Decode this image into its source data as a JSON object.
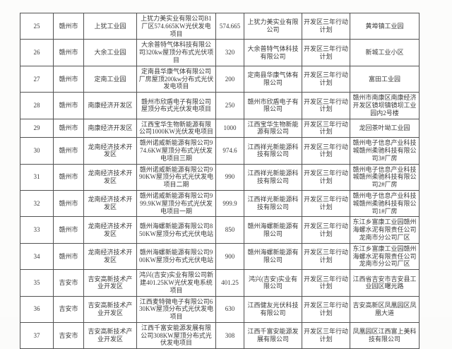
{
  "table": {
    "rows": [
      {
        "no": "25",
        "city": "赣州市",
        "zone": "上犹工业园",
        "project": "上犹力美实业有限公司B1厂区574.665KW光伏发电项目",
        "capacity": "574.665",
        "company": "上犹力美实业有限公司",
        "plan": "开发区三年行动计划",
        "location": "黄埠镇工业园"
      },
      {
        "no": "26",
        "city": "赣州市",
        "zone": "大余工业园",
        "project": "大余普特气体科技有限公司320kw屋顶分布式光伏项目",
        "capacity": "320",
        "company": "大余普特气体科技有限公司",
        "plan": "开发区三年行动计划",
        "location": "新城工业小区"
      },
      {
        "no": "27",
        "city": "赣州市",
        "zone": "定南工业园",
        "project": "定南县华康气体有限公司厂房屋顶200kw分布式光伏发电项目",
        "capacity": "200",
        "company": "定南县华康气体有限公司",
        "plan": "开发区三年行动计划",
        "location": "富田工业园"
      },
      {
        "no": "28",
        "city": "赣州市",
        "zone": "南康经济开发区",
        "project": "赣州市欣盾电子有限公司屋顶分布式光伏发电项目",
        "capacity": "250",
        "company": "赣州市欣盾电子有限公司",
        "plan": "开发区三年行动计划",
        "location": "赣州市南康区南康经济开发区镜坝镇镜坝工业园内2号楼"
      },
      {
        "no": "29",
        "city": "赣州市",
        "zone": "南康经济开发区",
        "project": "江西宝华生物新能源有限公司1000KW光伏发电项目",
        "capacity": "1000",
        "company": "江西宝华生物新能源有限公司",
        "plan": "开发区三年行动计划",
        "location": "龙回茶叶坳工业园"
      },
      {
        "no": "30",
        "city": "赣州市",
        "zone": "龙南经济技术开发区",
        "project": "赣州诺威新能源有限公司974.6KW屋顶分布式光伏发电项目三期",
        "capacity": "974.6",
        "company": "江西祥光新能源科技有限公司",
        "plan": "开发区三年行动计划",
        "location": "赣州电子信息产业科技城赣州柔驰科技有限公司3#厂房"
      },
      {
        "no": "31",
        "city": "赣州市",
        "zone": "龙南经济技术开发区",
        "project": "赣州诺威新能源有限公司990KW屋顶分布式光伏发电项目二期",
        "capacity": "990",
        "company": "江西祥光新能源科技有限公司",
        "plan": "开发区三年行动计划",
        "location": "赣州电子信息产业科技城赣州柔驰科技有限公司2#厂房"
      },
      {
        "no": "32",
        "city": "赣州市",
        "zone": "龙南经济技术开发区",
        "project": "赣州诺威新能源有限公司999.9KW屋顶分布式光伏发电项目一期",
        "capacity": "999.9",
        "company": "江西祥光新能源科技有限公司",
        "plan": "开发区三年行动计划",
        "location": "赣州电子信息产业科技城赣州柔驰科技有限公司1#厂房"
      },
      {
        "no": "33",
        "city": "赣州市",
        "zone": "龙南经济技术开发区",
        "project": "赣州海螺新能源有限公司850KW屋顶分布式光伏电站",
        "capacity": "850",
        "company": "赣州海螺新能源有限公司",
        "plan": "开发区三年行动计划",
        "location": "东江乡富康工业园赣州海螺水泥有限责任公司龙南市分公司厂区"
      },
      {
        "no": "34",
        "city": "赣州市",
        "zone": "龙南经济技术开发区",
        "project": "赣州海螺新能源有限公司900KW屋顶分布式光伏电站",
        "capacity": "900",
        "company": "赣州海螺新能源有限公司",
        "plan": "开发区三年行动计划",
        "location": "东江乡富康工业园赣州海螺水泥有限责任公司龙南市分公司厂区"
      },
      {
        "no": "35",
        "city": "吉安市",
        "zone": "吉安高新技术产业开发区",
        "project": "鸿兴(吉安)实业有限公司新建401.25KW光伏发电系统项目",
        "capacity": "401.25",
        "company": "鸿兴(吉安)实业有限公司",
        "plan": "开发区三年行动计划",
        "location": "江西省吉安市吉安县工业园区曙光路"
      },
      {
        "no": "36",
        "city": "吉安市",
        "zone": "吉安高新技术产业开发区",
        "project": "江西麦特微电子有限公司630KW屋顶分布式光伏发电项目",
        "capacity": "630",
        "company": "江西健友光伏科技有限公司",
        "plan": "开发区三年行动计划",
        "location": "吉安高新区凤凰园区凤凰大道"
      },
      {
        "no": "37",
        "city": "吉安市",
        "zone": "吉安高新技术产业开发区",
        "project": "江西千富安能源发展有限公司308KW屋顶分布式光伏发电项目",
        "capacity": "308",
        "company": "江西千富安能源发展有限公司",
        "plan": "开发区三年行动计划",
        "location": "凤凰园区江西富上美科技有限公司"
      }
    ]
  }
}
